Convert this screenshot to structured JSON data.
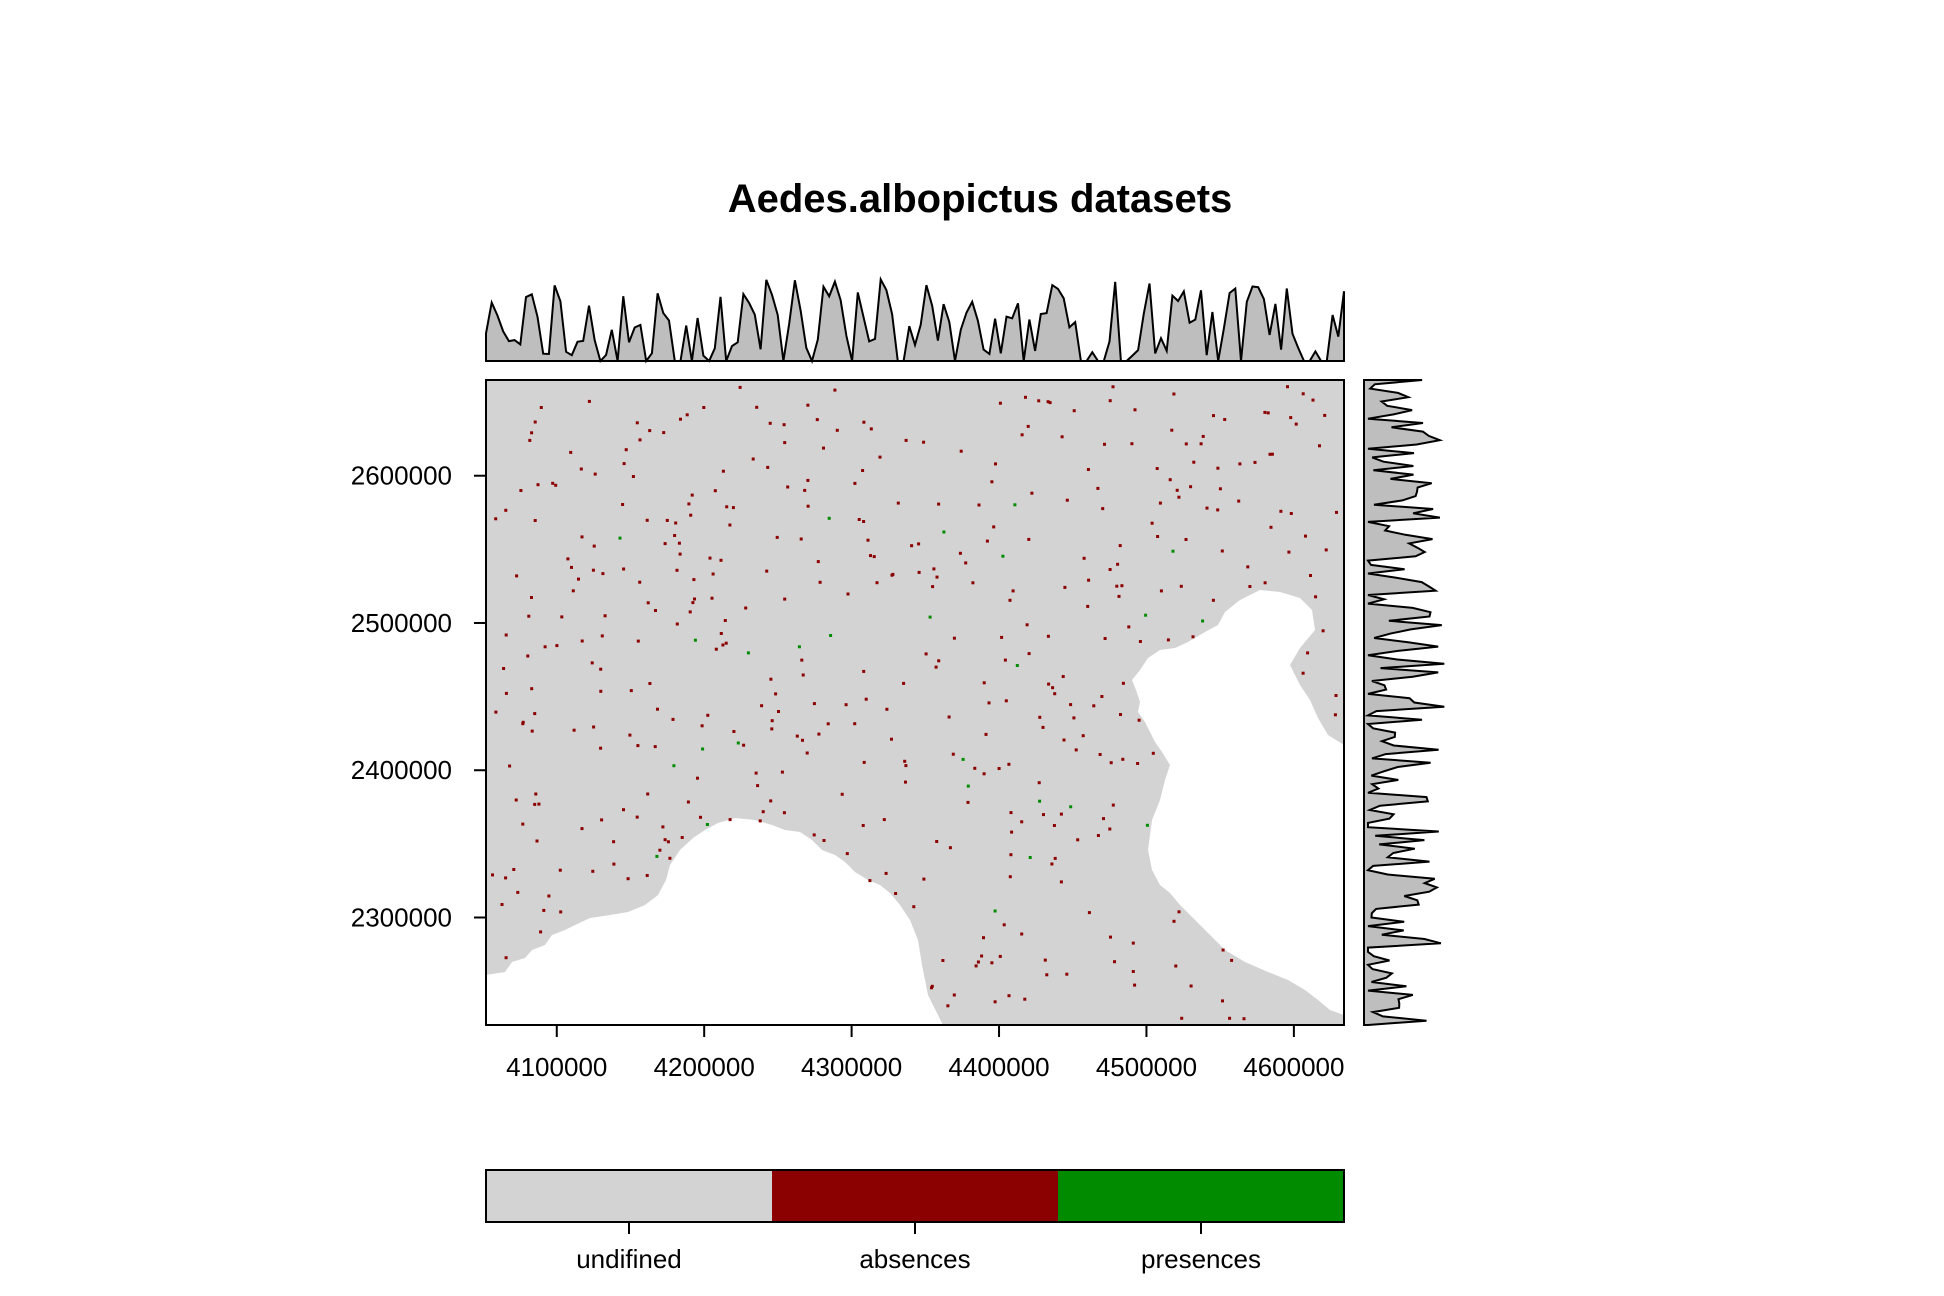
{
  "title": "Aedes.albopictus datasets",
  "map": {
    "x_range": [
      4052000,
      4634000
    ],
    "y_range": [
      2227000,
      2665000
    ],
    "x_ticks": [
      {
        "value": 4100000,
        "label": "4100000"
      },
      {
        "value": 4200000,
        "label": "4200000"
      },
      {
        "value": 4300000,
        "label": "4300000"
      },
      {
        "value": 4400000,
        "label": "4400000"
      },
      {
        "value": 4500000,
        "label": "4500000"
      },
      {
        "value": 4600000,
        "label": "4600000"
      }
    ],
    "y_ticks": [
      {
        "value": 2300000,
        "label": "2300000"
      },
      {
        "value": 2400000,
        "label": "2400000"
      },
      {
        "value": 2500000,
        "label": "2500000"
      },
      {
        "value": 2600000,
        "label": "2600000"
      }
    ],
    "land_color": "#d3d3d3",
    "water_color": "#ffffff",
    "absence_color": "#8b0000",
    "presence_color": "#008b00",
    "marginal_fill_color": "#bebebe",
    "marginal_x_histogram": "top",
    "marginal_y_histogram": "right"
  },
  "legend": {
    "placement": "bottom",
    "classes": [
      {
        "label": "undifined",
        "color": "#d3d3d3"
      },
      {
        "label": "absences",
        "color": "#8b0000"
      },
      {
        "label": "presences",
        "color": "#008b00"
      }
    ]
  }
}
